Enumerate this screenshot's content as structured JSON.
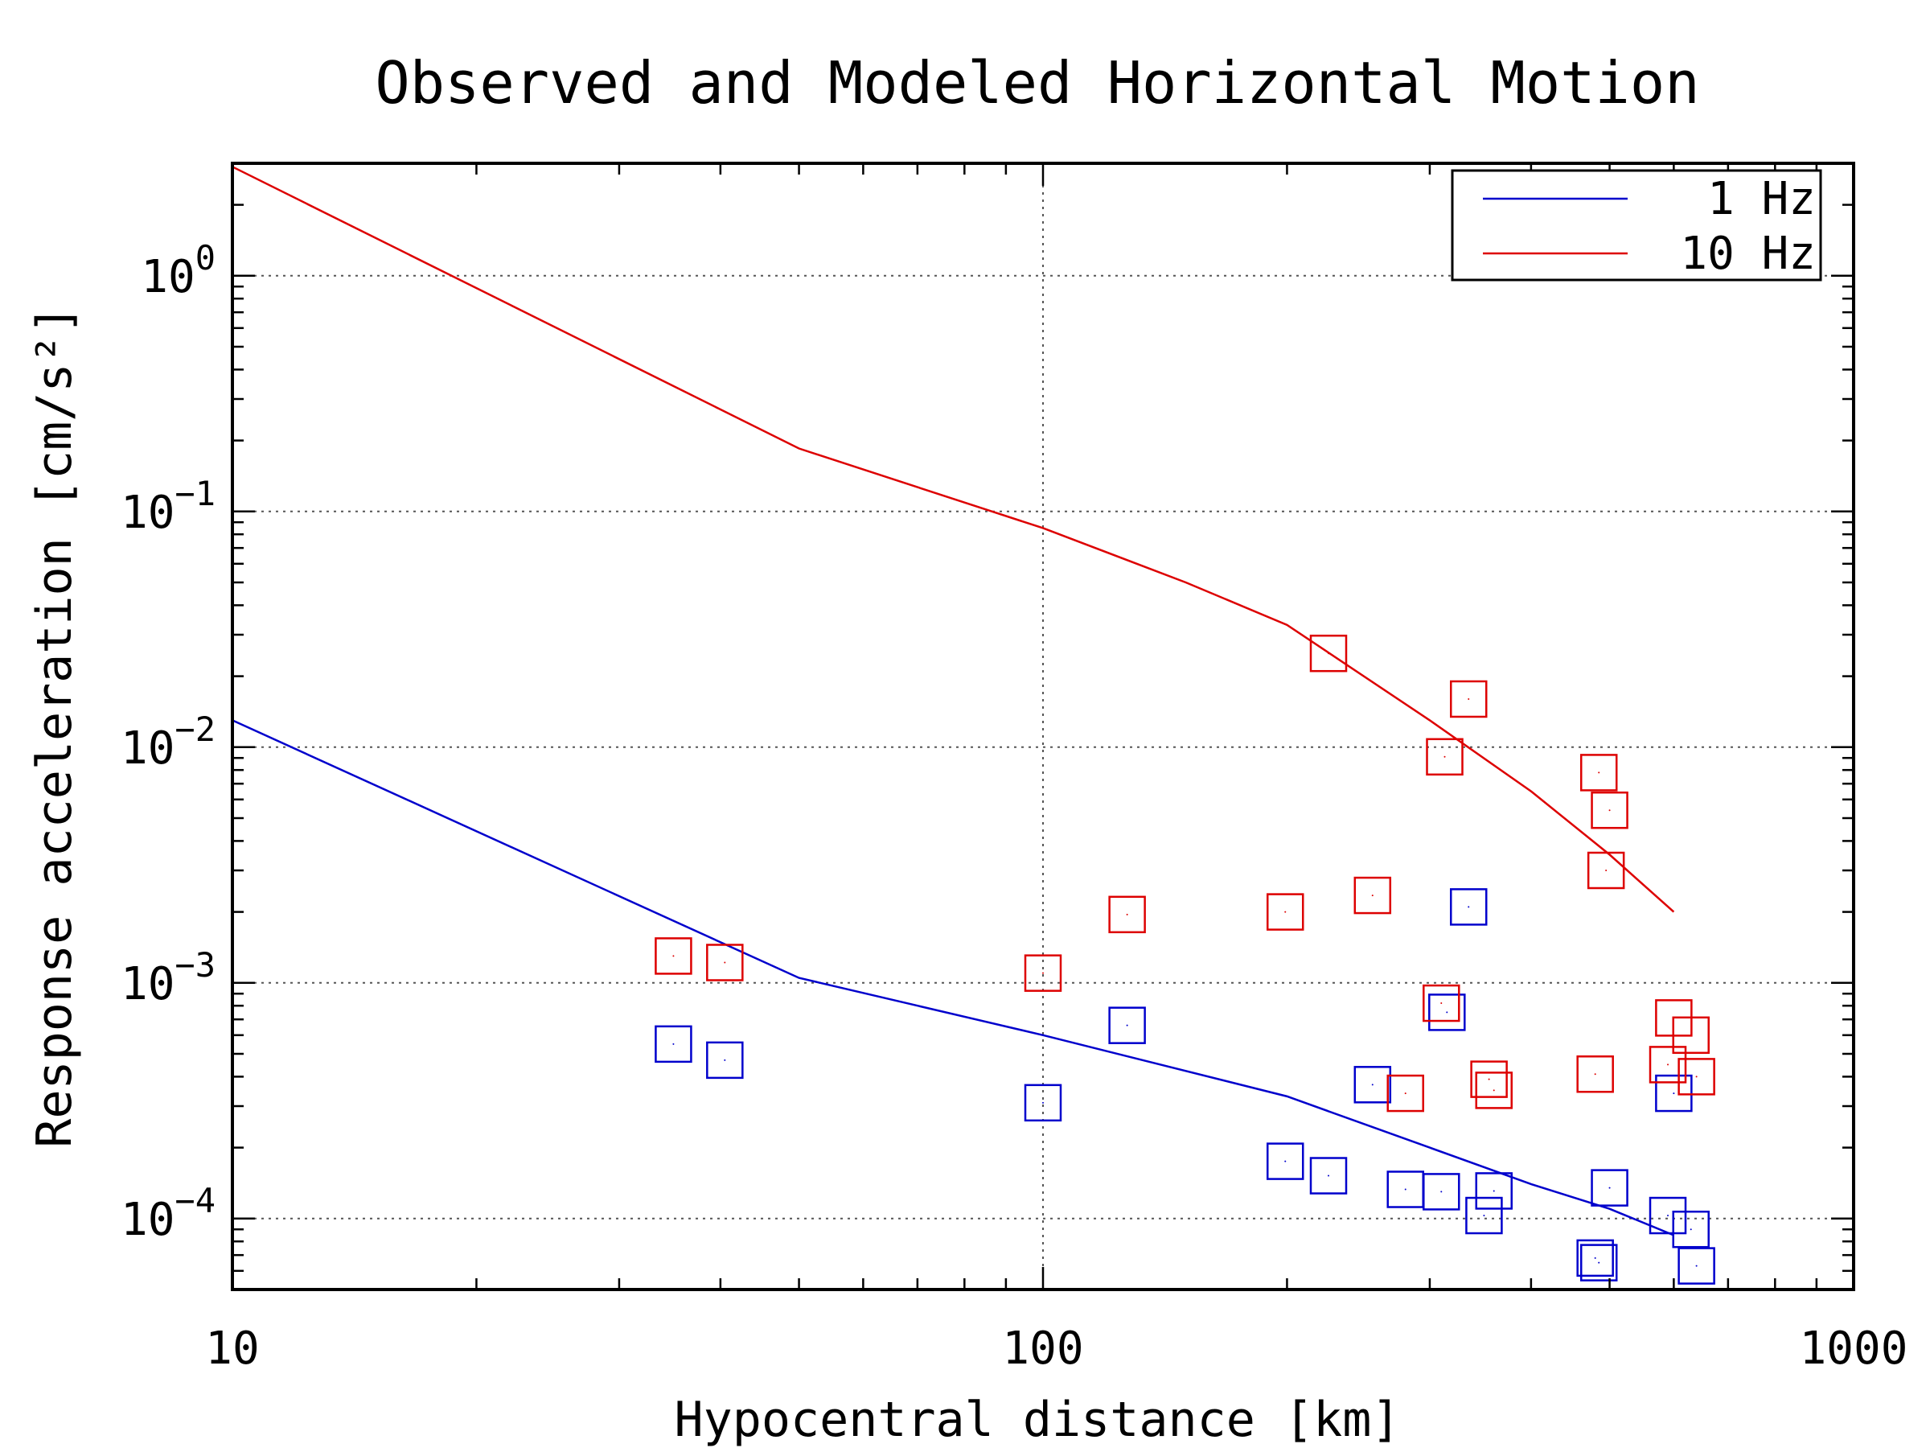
{
  "chart_data": {
    "type": "scatter",
    "title": "Observed and Modeled Horizontal Motion",
    "xlabel": "Hypocentral distance [km]",
    "ylabel": "Response acceleration [cm/s²]",
    "x_scale": "log",
    "y_scale": "log",
    "xlim": [
      10,
      1000
    ],
    "ylim": [
      5e-05,
      3.0
    ],
    "x_ticks": [
      10,
      100,
      1000
    ],
    "x_tick_labels": [
      "10",
      "100",
      "1000"
    ],
    "y_ticks": [
      0.0001,
      0.001,
      0.01,
      0.1,
      1
    ],
    "y_tick_labels": [
      {
        "base": "10",
        "exp": "−4"
      },
      {
        "base": "10",
        "exp": "−3"
      },
      {
        "base": "10",
        "exp": "−2"
      },
      {
        "base": "10",
        "exp": "−1"
      },
      {
        "base": "10",
        "exp": "0"
      }
    ],
    "grid": true,
    "legend": {
      "position": "top-right",
      "entries": [
        {
          "label": "1 Hz",
          "color": "#0000cc"
        },
        {
          "label": "10 Hz",
          "color": "#dd0000"
        }
      ]
    },
    "series": [
      {
        "name": "1 Hz",
        "color": "#0000cc",
        "model_line": {
          "x": [
            10,
            50,
            100,
            200,
            300,
            400,
            500,
            600
          ],
          "y": [
            0.013,
            0.00105,
            0.0006,
            0.00033,
            0.0002,
            0.00014,
            0.00011,
            8.5e-05
          ]
        },
        "observed": {
          "x": [
            35,
            40.5,
            100,
            127,
            199,
            225,
            255,
            280,
            310,
            315,
            335,
            350,
            360,
            480,
            485,
            500,
            590,
            600,
            630,
            640
          ],
          "y": [
            0.00055,
            0.00047,
            0.00031,
            0.00066,
            0.000175,
            0.000152,
            0.00037,
            0.000133,
            0.00013,
            0.00075,
            0.0021,
            0.000103,
            0.000131,
            6.8e-05,
            6.5e-05,
            0.000135,
            0.000103,
            0.00034,
            9e-05,
            6.3e-05
          ]
        }
      },
      {
        "name": "10 Hz",
        "color": "#dd0000",
        "model_line": {
          "x": [
            10,
            50,
            100,
            150,
            200,
            300,
            400,
            500,
            600
          ],
          "y": [
            2.9,
            0.185,
            0.085,
            0.05,
            0.033,
            0.013,
            0.0065,
            0.0035,
            0.002
          ]
        },
        "observed": {
          "x": [
            35,
            40.5,
            100,
            127,
            199,
            225,
            255,
            280,
            310,
            313,
            335,
            355,
            360,
            480,
            485,
            500,
            495,
            590,
            600,
            630,
            640
          ],
          "y": [
            0.0013,
            0.00122,
            0.0011,
            0.00195,
            0.002,
            0.025,
            0.00235,
            0.00034,
            0.00082,
            0.0091,
            0.016,
            0.00039,
            0.00035,
            0.00041,
            0.0078,
            0.0054,
            0.003,
            0.00045,
            0.00071,
            0.0006,
            0.0004
          ]
        }
      }
    ]
  }
}
